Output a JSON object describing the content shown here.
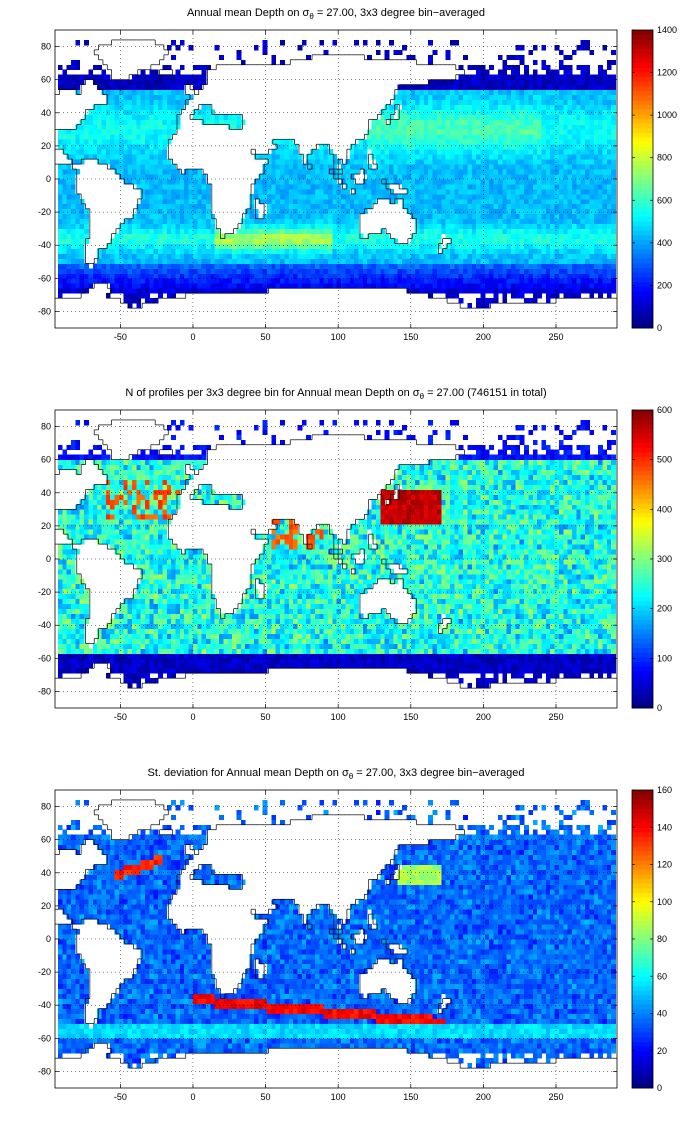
{
  "chart_data": [
    {
      "type": "heatmap",
      "title_prefix": "Annual mean Depth on ",
      "title_sigma": "σ",
      "title_sub": "θ",
      "title_suffix": " = 27.00, 3x3 degree bin−averaged",
      "xlim": [
        -95,
        292
      ],
      "ylim": [
        -90,
        90
      ],
      "x_ticks": [
        -50,
        0,
        50,
        100,
        150,
        200,
        250
      ],
      "y_ticks": [
        80,
        60,
        40,
        20,
        0,
        -20,
        -40,
        -60,
        -80
      ],
      "grid": "dotted",
      "colorbar": {
        "min": 0,
        "max": 1400,
        "ticks": [
          1400,
          1200,
          1000,
          800,
          600,
          400,
          200,
          0
        ],
        "colormap": "jet"
      }
    },
    {
      "type": "heatmap",
      "title_prefix": "N of profiles per 3x3 degree bin for Annual mean Depth on ",
      "title_sigma": "σ",
      "title_sub": "θ",
      "title_suffix": " = 27.00 (746151 in total)",
      "xlim": [
        -95,
        292
      ],
      "ylim": [
        -90,
        90
      ],
      "x_ticks": [
        -50,
        0,
        50,
        100,
        150,
        200,
        250
      ],
      "y_ticks": [
        80,
        60,
        40,
        20,
        0,
        -20,
        -40,
        -60,
        -80
      ],
      "grid": "dotted",
      "colorbar": {
        "min": 0,
        "max": 600,
        "ticks": [
          600,
          500,
          400,
          300,
          200,
          100,
          0
        ],
        "colormap": "jet"
      }
    },
    {
      "type": "heatmap",
      "title_prefix": "St. deviation for Annual mean Depth on ",
      "title_sigma": "σ",
      "title_sub": "θ",
      "title_suffix": " = 27.00, 3x3 degree bin−averaged",
      "xlim": [
        -95,
        292
      ],
      "ylim": [
        -90,
        90
      ],
      "x_ticks": [
        -50,
        0,
        50,
        100,
        150,
        200,
        250
      ],
      "y_ticks": [
        80,
        60,
        40,
        20,
        0,
        -20,
        -40,
        -60,
        -80
      ],
      "grid": "dotted",
      "colorbar": {
        "min": 0,
        "max": 160,
        "ticks": [
          160,
          140,
          120,
          100,
          80,
          60,
          40,
          20,
          0
        ],
        "colormap": "jet"
      }
    }
  ]
}
